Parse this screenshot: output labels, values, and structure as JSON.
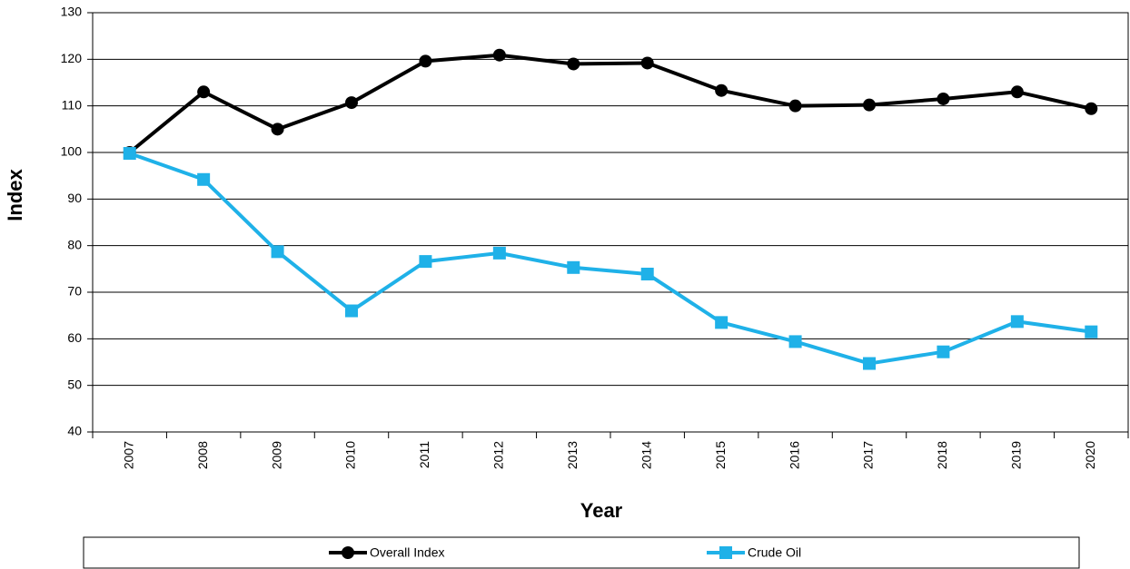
{
  "chart_data": {
    "type": "line",
    "x_label": "Year",
    "y_label": "Index",
    "categories": [
      "2007",
      "2008",
      "2009",
      "2010",
      "2011",
      "2012",
      "2013",
      "2014",
      "2015",
      "2016",
      "2017",
      "2018",
      "2019",
      "2020"
    ],
    "series": [
      {
        "name": "Overall Index",
        "color": "#000000",
        "marker": "circle",
        "values": [
          100,
          113,
          105,
          110.7,
          119.6,
          120.9,
          119,
          119.2,
          113.3,
          110,
          110.2,
          111.5,
          113,
          109.4
        ]
      },
      {
        "name": "Crude Oil",
        "color": "#1fb1e8",
        "marker": "square",
        "values": [
          99.8,
          94.2,
          78.7,
          66,
          76.6,
          78.4,
          75.3,
          73.9,
          63.5,
          59.4,
          54.7,
          57.2,
          63.7,
          61.5
        ]
      }
    ],
    "ylim": [
      40,
      130
    ],
    "yticks": [
      40,
      50,
      60,
      70,
      80,
      90,
      100,
      110,
      120,
      130
    ],
    "grid": true,
    "legend": "bottom"
  }
}
